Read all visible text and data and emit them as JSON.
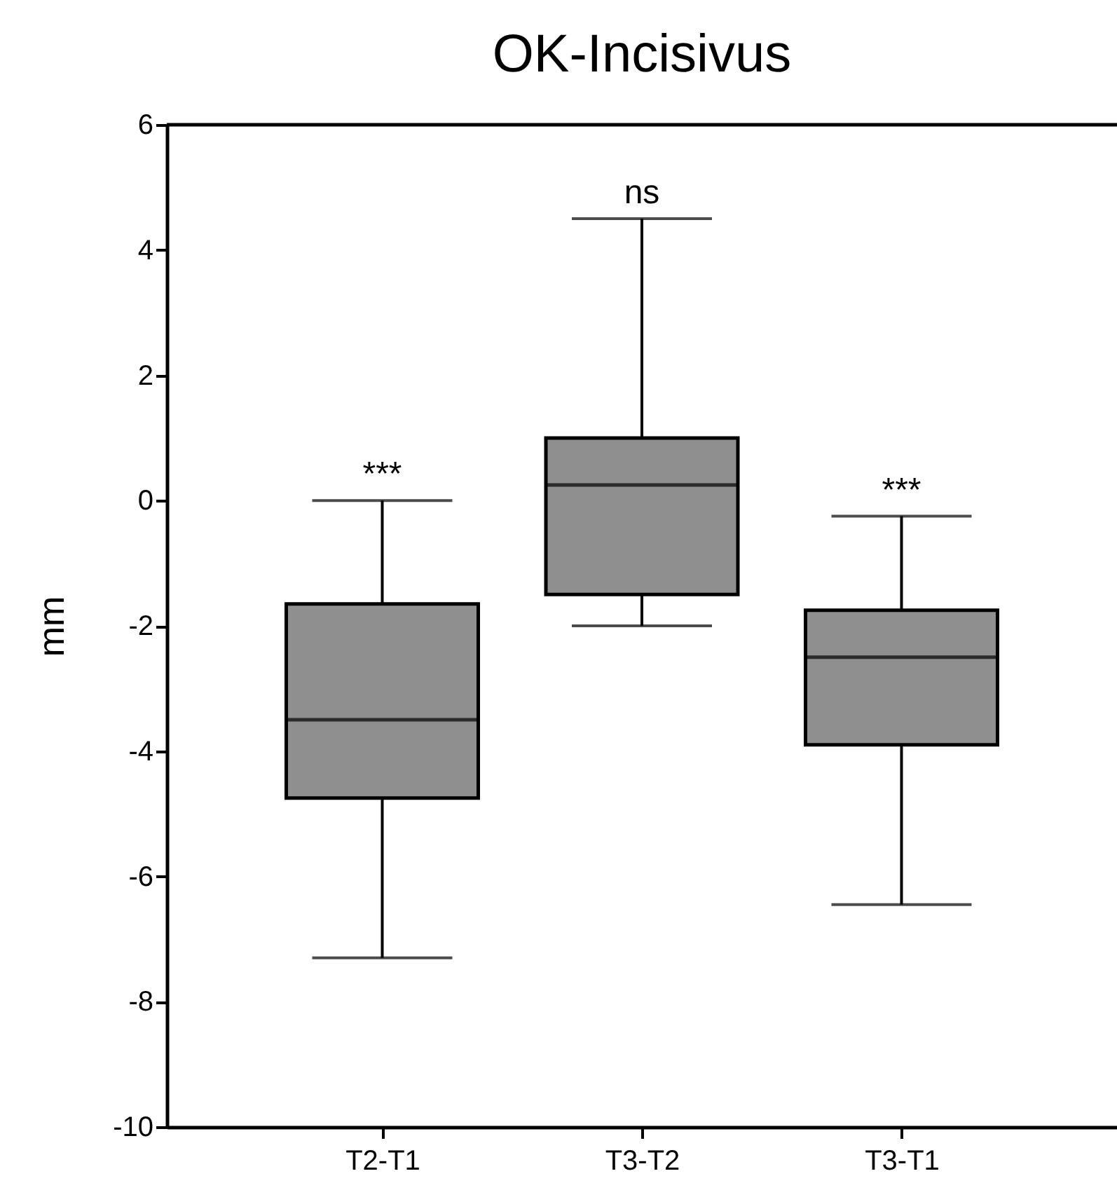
{
  "chart_data": {
    "type": "box",
    "title": "OK-Incisivus",
    "ylabel": "mm",
    "categories": [
      "T2-T1",
      "T3-T2",
      "T3-T1"
    ],
    "boxes": [
      {
        "low": -7.3,
        "q1": -4.75,
        "median": -3.5,
        "q3": -1.65,
        "high": 0
      },
      {
        "low": -2,
        "q1": -1.5,
        "median": 0.25,
        "q3": 1,
        "high": 4.5
      },
      {
        "low": -6.45,
        "q1": -3.9,
        "median": -2.5,
        "q3": -1.75,
        "high": -0.25
      }
    ],
    "color": "#8f8f8f",
    "ylim": [
      -10,
      6
    ],
    "yticks": [
      -10,
      -8,
      -6,
      -4,
      -2,
      0,
      2,
      4,
      6
    ],
    "annotations": [
      "***",
      "ns",
      "***"
    ],
    "grid": false
  }
}
